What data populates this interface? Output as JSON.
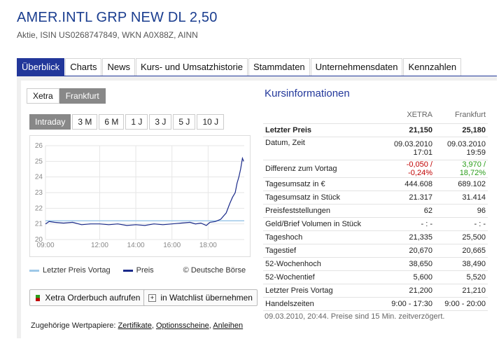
{
  "header": {
    "title": "AMER.INTL GRP NEW DL 2,50",
    "subtitle": "Aktie, ISIN US0268747849, WKN A0X88Z, AINN"
  },
  "tabs": [
    "Überblick",
    "Charts",
    "News",
    "Kurs- und Umsatzhistorie",
    "Stammdaten",
    "Unternehmensdaten",
    "Kennzahlen"
  ],
  "exchange_tabs": [
    "Xetra",
    "Frankfurt"
  ],
  "range_tabs": [
    "Intraday",
    "3 M",
    "6 M",
    "1 J",
    "3 J",
    "5 J",
    "10 J"
  ],
  "legend": {
    "previous": "Letzter Preis Vortag",
    "price": "Preis",
    "source": "© Deutsche Börse",
    "previous_color": "#9ec8e8",
    "price_color": "#1a2a8a"
  },
  "buttons": {
    "orderbook": "Xetra Orderbuch aufrufen",
    "watchlist": "in Watchlist übernehmen"
  },
  "related": {
    "label": "Zugehörige Wertpapiere:",
    "zertifikate": "Zertifikate",
    "optionsscheine": "Optionsscheine",
    "anleihen": "Anleihen"
  },
  "kurs": {
    "title": "Kursinformationen",
    "col_xetra": "XETRA",
    "col_frankfurt": "Frankfurt",
    "rows": [
      {
        "label": "Letzter Preis",
        "xetra": "21,150",
        "frankfurt": "25,180"
      },
      {
        "label": "Datum, Zeit",
        "xetra": "09.03.2010 17:01",
        "frankfurt": "09.03.2010 19:59"
      },
      {
        "label": "Differenz zum Vortag",
        "xetra": "-0,050 / -0,24%",
        "frankfurt": "3,970 / 18,72%"
      },
      {
        "label": "Tagesumsatz in €",
        "xetra": "444.608",
        "frankfurt": "689.102"
      },
      {
        "label": "Tagesumsatz in Stück",
        "xetra": "21.317",
        "frankfurt": "31.414"
      },
      {
        "label": "Preisfeststellungen",
        "xetra": "62",
        "frankfurt": "96"
      },
      {
        "label": "Geld/Brief Volumen in Stück",
        "xetra": "- : -",
        "frankfurt": "- : -"
      },
      {
        "label": "Tageshoch",
        "xetra": "21,335",
        "frankfurt": "25,500"
      },
      {
        "label": "Tagestief",
        "xetra": "20,670",
        "frankfurt": "20,665"
      },
      {
        "label": "52-Wochenhoch",
        "xetra": "38,650",
        "frankfurt": "38,490"
      },
      {
        "label": "52-Wochentief",
        "xetra": "5,600",
        "frankfurt": "5,520"
      },
      {
        "label": "Letzter Preis Vortag",
        "xetra": "21,200",
        "frankfurt": "21,210"
      },
      {
        "label": "Handelszeiten",
        "xetra": "9:00 - 17:30",
        "frankfurt": "9:00 - 20:00"
      }
    ],
    "note": "09.03.2010, 20:44. Preise sind 15 Min. zeitverzögert."
  },
  "chart_data": {
    "type": "line",
    "y_ticks": [
      "26",
      "25",
      "24",
      "23",
      "22",
      "21",
      "20"
    ],
    "x_ticks": [
      "09:00",
      "12:00",
      "14:00",
      "16:00",
      "18:00"
    ],
    "ylim": [
      20,
      26
    ],
    "xlim": [
      9,
      20
    ],
    "previous_close": 21.2,
    "x": [
      9.0,
      9.2,
      9.5,
      10.0,
      10.5,
      11.0,
      11.5,
      12.0,
      12.5,
      13.0,
      13.5,
      14.0,
      14.5,
      15.0,
      15.5,
      16.0,
      16.5,
      17.0,
      17.3,
      17.6,
      17.9,
      18.1,
      18.4,
      18.7,
      19.0,
      19.2,
      19.35,
      19.5,
      19.6,
      19.7,
      19.8,
      19.9,
      19.97
    ],
    "y": [
      21.0,
      21.15,
      21.1,
      21.05,
      21.1,
      20.95,
      21.0,
      21.0,
      20.95,
      21.0,
      20.9,
      20.95,
      20.9,
      21.0,
      20.95,
      21.0,
      21.05,
      21.1,
      21.0,
      21.05,
      20.9,
      21.1,
      21.15,
      21.3,
      21.7,
      22.3,
      22.7,
      23.0,
      23.6,
      24.0,
      24.5,
      25.2,
      25.0
    ]
  }
}
